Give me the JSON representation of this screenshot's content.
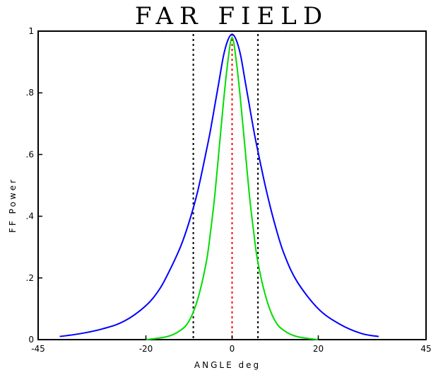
{
  "chart_data": {
    "type": "line",
    "title": "FAR FIELD",
    "xlabel": "ANGLE  deg",
    "ylabel": "FF Power",
    "xlim": [
      -45,
      45
    ],
    "ylim": [
      0,
      1
    ],
    "x_ticks": [
      -45,
      -20,
      0,
      20,
      45
    ],
    "x_tick_labels": [
      "-45",
      "-20",
      "0",
      "20",
      "45"
    ],
    "y_ticks": [
      0,
      0.2,
      0.4,
      0.6,
      0.8,
      1
    ],
    "y_tick_labels": [
      "0",
      ".2",
      ".4",
      ".6",
      ".8",
      "1"
    ],
    "grid": false,
    "series": [
      {
        "color": "#0000ff",
        "x": [
          -40,
          -35,
          -30,
          -25,
          -20,
          -17,
          -15,
          -12,
          -10,
          -8,
          -6,
          -5,
          -4,
          -3,
          -2,
          -1,
          0,
          1,
          2,
          3,
          4,
          5,
          6,
          8,
          10,
          12,
          15,
          20,
          25,
          30,
          34
        ],
        "y": [
          0.01,
          0.02,
          0.035,
          0.06,
          0.11,
          0.16,
          0.21,
          0.3,
          0.38,
          0.48,
          0.61,
          0.68,
          0.76,
          0.84,
          0.92,
          0.97,
          0.99,
          0.97,
          0.92,
          0.84,
          0.76,
          0.68,
          0.61,
          0.48,
          0.37,
          0.28,
          0.19,
          0.1,
          0.05,
          0.02,
          0.01
        ]
      },
      {
        "color": "#00dd00",
        "x": [
          -20,
          -15,
          -12,
          -10,
          -8,
          -6,
          -5,
          -4,
          -3,
          -2,
          -1,
          0,
          1,
          2,
          3,
          4,
          5,
          6,
          8,
          10,
          12,
          15,
          20
        ],
        "y": [
          0,
          0.01,
          0.03,
          0.06,
          0.13,
          0.25,
          0.35,
          0.47,
          0.62,
          0.77,
          0.9,
          0.98,
          0.9,
          0.77,
          0.62,
          0.47,
          0.35,
          0.25,
          0.13,
          0.06,
          0.03,
          0.01,
          0
        ]
      }
    ],
    "vlines": [
      {
        "x": -9,
        "color": "#000000",
        "style": "dotted"
      },
      {
        "x": 0,
        "color": "#ff0000",
        "style": "dotted"
      },
      {
        "x": 6,
        "color": "#000000",
        "style": "dotted"
      }
    ]
  }
}
